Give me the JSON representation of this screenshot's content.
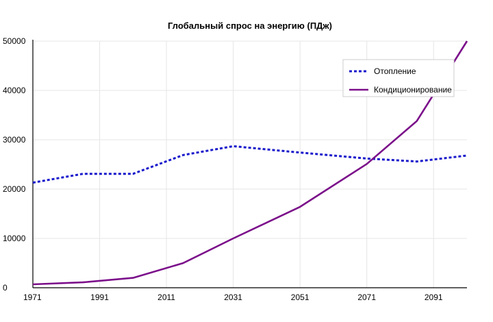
{
  "chart_data": {
    "type": "line",
    "title": "Глобальный спрос на энергию (ПДж)",
    "xlabel": "",
    "ylabel": "",
    "x": [
      1971,
      1991,
      2011,
      2031,
      2051,
      2071,
      2091
    ],
    "x_tick_labels": [
      "1971",
      "1991",
      "2011",
      "2031",
      "2051",
      "2071",
      "2091"
    ],
    "y_tick_labels": [
      "0",
      "10000",
      "20000",
      "30000",
      "40000",
      "50000"
    ],
    "xlim": [
      1971,
      2101
    ],
    "ylim": [
      0,
      50000
    ],
    "grid": true,
    "legend_position": "top-right",
    "series": [
      {
        "name": "Отопление",
        "color": "#1a1acc",
        "style": "dotted",
        "points": [
          [
            1971,
            21300
          ],
          [
            1986,
            23100
          ],
          [
            2001,
            23100
          ],
          [
            2016,
            26900
          ],
          [
            2031,
            28700
          ],
          [
            2051,
            27400
          ],
          [
            2071,
            26200
          ],
          [
            2086,
            25600
          ],
          [
            2101,
            26800
          ]
        ]
      },
      {
        "name": "Кондиционирование",
        "color": "#7b0e8a",
        "style": "solid",
        "points": [
          [
            1971,
            700
          ],
          [
            1986,
            1100
          ],
          [
            2001,
            2000
          ],
          [
            2016,
            5000
          ],
          [
            2031,
            10000
          ],
          [
            2051,
            16400
          ],
          [
            2071,
            25100
          ],
          [
            2086,
            33800
          ],
          [
            2101,
            50000
          ]
        ]
      }
    ]
  }
}
